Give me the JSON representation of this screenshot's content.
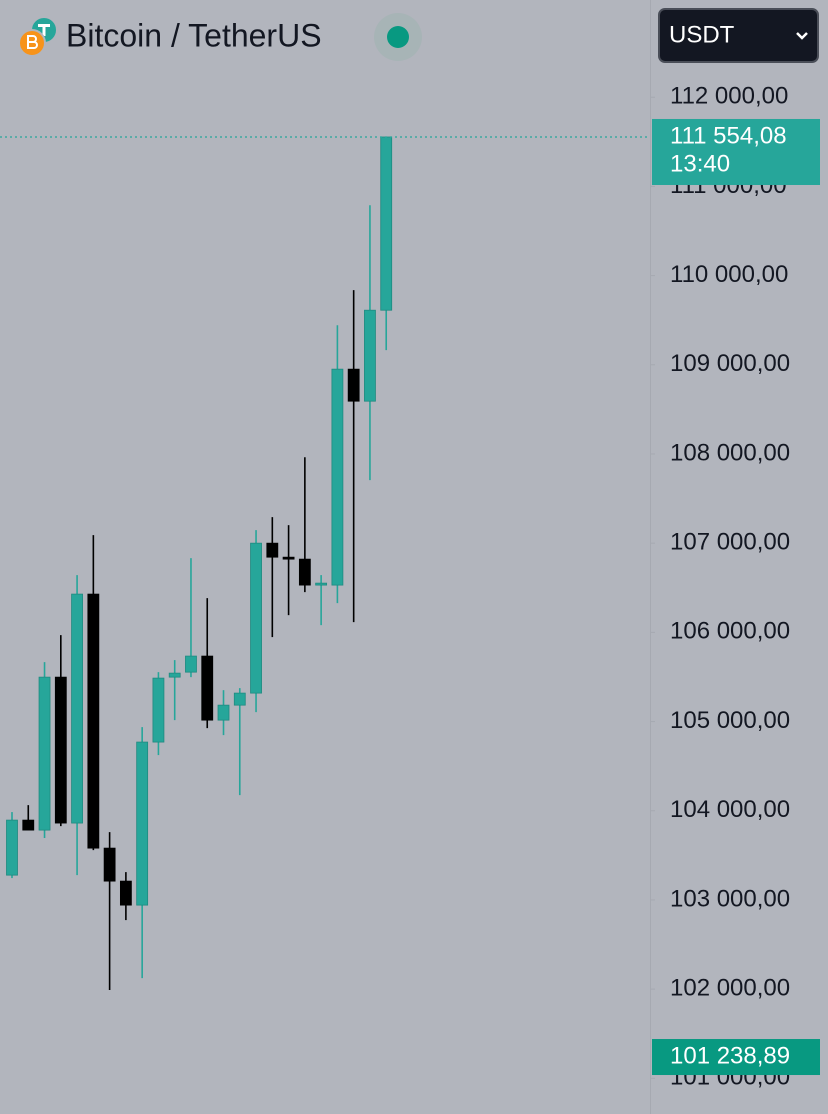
{
  "chart_data": {
    "type": "candlestick",
    "title": "Bitcoin / TetherUS",
    "currency": "USDT",
    "series": {
      "open": [
        103278,
        103895,
        103783,
        105498,
        103862,
        106429,
        103581,
        103211,
        102942,
        104770,
        105498,
        105554,
        105734,
        105016,
        105184,
        105319,
        107000,
        106843,
        106821,
        106530,
        106530,
        108951,
        108592,
        109612
      ],
      "high": [
        103985,
        104063,
        105666,
        105969,
        106642,
        107090,
        103761,
        103312,
        104938,
        105554,
        105689,
        106832,
        106384,
        105352,
        105375,
        107146,
        107292,
        107202,
        107964,
        106642,
        109444,
        109837,
        110789,
        111554.08
      ],
      "low": [
        103245,
        103783,
        103694,
        103828,
        103278,
        103559,
        101990,
        102774,
        102124,
        104624,
        105016,
        105498,
        104927,
        104848,
        104175,
        105106,
        105947,
        106193,
        106451,
        106081,
        106328,
        106115,
        107707,
        109164
      ],
      "close": [
        103895,
        103783,
        105498,
        103862,
        106429,
        103581,
        103211,
        102942,
        104770,
        105487,
        105543,
        105734,
        105016,
        105184,
        105319,
        107000,
        106843,
        106821,
        106530,
        106552,
        108951,
        108592,
        109612,
        111554.08
      ]
    },
    "up_color": "#26a69a",
    "down_color": "#000000",
    "ylim": [
      100600,
      113090
    ],
    "yticks": [
      {
        "value": 101000,
        "label": "101 000,00"
      },
      {
        "value": 102000,
        "label": "102 000,00"
      },
      {
        "value": 103000,
        "label": "103 000,00"
      },
      {
        "value": 104000,
        "label": "104 000,00"
      },
      {
        "value": 105000,
        "label": "105 000,00"
      },
      {
        "value": 106000,
        "label": "106 000,00"
      },
      {
        "value": 107000,
        "label": "107 000,00"
      },
      {
        "value": 108000,
        "label": "108 000,00"
      },
      {
        "value": 109000,
        "label": "109 000,00"
      },
      {
        "value": 110000,
        "label": "110 000,00"
      },
      {
        "value": 111000,
        "label": "111 000,00"
      },
      {
        "value": 112000,
        "label": "112 000,00"
      }
    ],
    "price_line": {
      "value": 111554.08,
      "label": "111 554,08",
      "time": "13:40",
      "color": "#26a69a"
    },
    "low_marker": {
      "value": 101238.89,
      "label": "101 238,89",
      "color": "#089981"
    }
  }
}
